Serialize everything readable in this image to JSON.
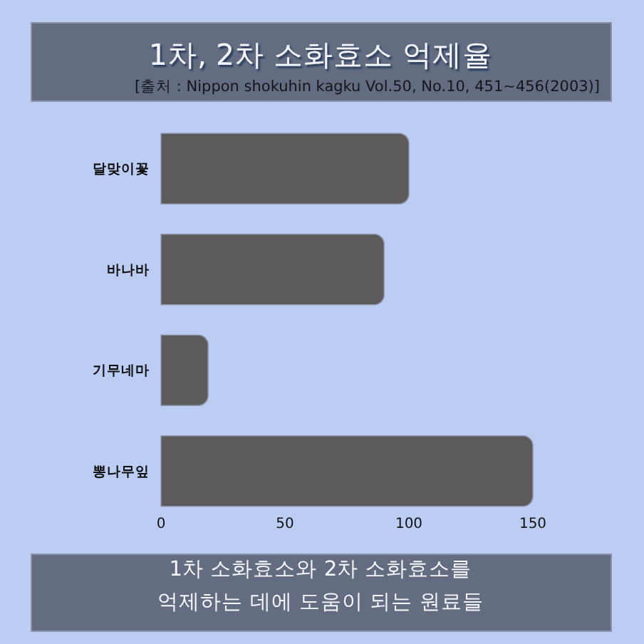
{
  "chart_data": {
    "type": "bar",
    "orientation": "horizontal",
    "title": "1차, 2차 소화효소 억제율",
    "subtitle": "[출처 : Nippon shokuhin kagku Vol.50, No.10, 451~456(2003)]",
    "categories": [
      "달맞이꽃",
      "바나바",
      "기무네마",
      "뽕나무잎"
    ],
    "values": [
      100,
      90,
      19,
      150
    ],
    "color": "#5c5a5a",
    "xlim": [
      0,
      150
    ],
    "xticks": [
      0,
      50,
      100,
      150
    ],
    "annotations": [
      "1차 소화효소와 2차 소화효소를\n억제하는 데에 도움이 되는 원료들"
    ]
  }
}
